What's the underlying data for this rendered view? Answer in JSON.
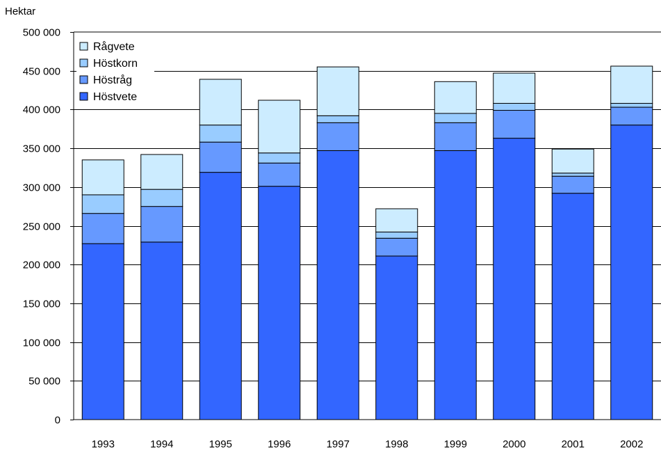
{
  "chart_data": {
    "type": "bar",
    "stacked": true,
    "ylabel": "Hektar",
    "ylim": [
      0,
      500000
    ],
    "yticks": [
      0,
      50000,
      100000,
      150000,
      200000,
      250000,
      300000,
      350000,
      400000,
      450000,
      500000
    ],
    "ytick_labels": [
      "0",
      "50 000",
      "100 000",
      "150 000",
      "200 000",
      "250 000",
      "300 000",
      "350 000",
      "400 000",
      "450 000",
      "500 000"
    ],
    "grid": true,
    "legend_position": "top-left",
    "categories": [
      "1993",
      "1994",
      "1995",
      "1996",
      "1997",
      "1998",
      "1999",
      "2000",
      "2001",
      "2002"
    ],
    "series": [
      {
        "name": "Höstvete",
        "color": "#3366ff",
        "values": [
          227000,
          229000,
          319000,
          301000,
          347000,
          211000,
          347000,
          363000,
          292000,
          380000
        ]
      },
      {
        "name": "Höstråg",
        "color": "#6699ff",
        "values": [
          39000,
          46000,
          39000,
          30000,
          36000,
          23000,
          36000,
          36000,
          22000,
          23000
        ]
      },
      {
        "name": "Höstkorn",
        "color": "#99ccff",
        "values": [
          24000,
          22000,
          22000,
          13000,
          9000,
          8000,
          12000,
          9000,
          4000,
          5000
        ]
      },
      {
        "name": "Rågvete",
        "color": "#ccecff",
        "values": [
          45000,
          45000,
          59000,
          68000,
          63000,
          30000,
          41000,
          39000,
          31000,
          48000
        ]
      }
    ]
  }
}
